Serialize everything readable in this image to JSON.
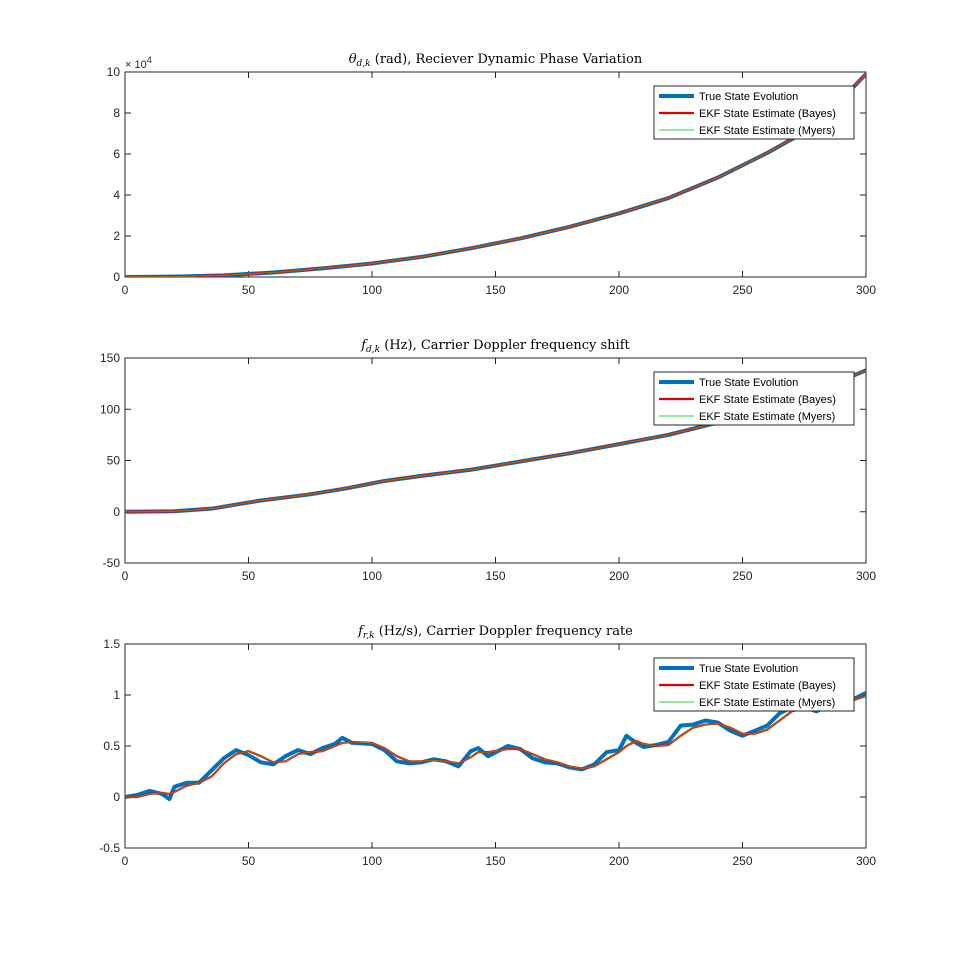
{
  "colors": {
    "true": "#0072BD",
    "bayes": "#E00000",
    "myers": "#2FD02F",
    "axis": "#262626",
    "myers_overlay": "#A06020"
  },
  "legend_labels": [
    "True State Evolution",
    "EKF State Estimate (Bayes)",
    "EKF State Estimate (Myers)"
  ],
  "chart_data": [
    {
      "type": "line",
      "title_sym": "θ",
      "title_sub": "d,k",
      "title_rest": " (rad), Reciever Dynamic Phase Variation",
      "xlim": [
        0,
        300
      ],
      "ylim": [
        0,
        10
      ],
      "xticks": [
        0,
        50,
        100,
        150,
        200,
        250,
        300
      ],
      "yticks": [
        0,
        2,
        4,
        6,
        8,
        10
      ],
      "exponent_label": "× 10",
      "exponent_power": "4",
      "legend": "top-right",
      "x": [
        0,
        20,
        40,
        60,
        80,
        100,
        120,
        140,
        160,
        180,
        200,
        220,
        240,
        260,
        280,
        300
      ],
      "series": [
        {
          "name": "True State Evolution",
          "values": [
            0,
            0.02,
            0.08,
            0.22,
            0.42,
            0.66,
            0.98,
            1.4,
            1.88,
            2.45,
            3.1,
            3.85,
            4.85,
            6.05,
            7.4,
            9.9
          ]
        },
        {
          "name": "EKF State Estimate (Bayes)",
          "values": [
            0,
            0.02,
            0.08,
            0.22,
            0.42,
            0.66,
            0.98,
            1.4,
            1.88,
            2.45,
            3.1,
            3.85,
            4.85,
            6.05,
            7.4,
            9.9
          ]
        },
        {
          "name": "EKF State Estimate (Myers)",
          "values": [
            0,
            0.02,
            0.08,
            0.22,
            0.42,
            0.66,
            0.98,
            1.4,
            1.88,
            2.45,
            3.1,
            3.85,
            4.85,
            6.05,
            7.4,
            9.9
          ]
        }
      ]
    },
    {
      "type": "line",
      "title_sym": "f",
      "title_sub": "d,k",
      "title_rest": " (Hz), Carrier Doppler frequency shift",
      "xlim": [
        0,
        300
      ],
      "ylim": [
        -50,
        150
      ],
      "xticks": [
        0,
        50,
        100,
        150,
        200,
        250,
        300
      ],
      "yticks": [
        -50,
        0,
        50,
        100,
        150
      ],
      "legend": "top-right",
      "x": [
        0,
        20,
        35,
        45,
        55,
        75,
        90,
        105,
        120,
        140,
        160,
        180,
        200,
        220,
        240,
        260,
        280,
        300
      ],
      "series": [
        {
          "name": "True State Evolution",
          "values": [
            0,
            0.5,
            3,
            7,
            11,
            17,
            23,
            30,
            35,
            41,
            49,
            57,
            66,
            75,
            87,
            100,
            118,
            138
          ]
        },
        {
          "name": "EKF State Estimate (Bayes)",
          "values": [
            0,
            0.5,
            3,
            7,
            11,
            17,
            23,
            30,
            35,
            41,
            49,
            57,
            66,
            75,
            87,
            100,
            118,
            138
          ]
        },
        {
          "name": "EKF State Estimate (Myers)",
          "values": [
            0,
            0.5,
            3,
            7,
            11,
            17,
            23,
            30,
            35,
            41,
            49,
            57,
            66,
            75,
            87,
            100,
            118,
            138
          ]
        }
      ]
    },
    {
      "type": "line",
      "title_sym": "f",
      "title_sub": "r,k",
      "title_rest": " (Hz/s), Carrier Doppler frequency rate",
      "xlim": [
        0,
        300
      ],
      "ylim": [
        -0.5,
        1.5
      ],
      "xticks": [
        0,
        50,
        100,
        150,
        200,
        250,
        300
      ],
      "yticks": [
        -0.5,
        0,
        0.5,
        1,
        1.5
      ],
      "legend": "top-right",
      "x": [
        0,
        5,
        10,
        15,
        18,
        20,
        25,
        30,
        35,
        40,
        45,
        50,
        55,
        60,
        65,
        70,
        75,
        80,
        85,
        88,
        92,
        100,
        105,
        110,
        115,
        120,
        125,
        130,
        135,
        140,
        143,
        147,
        155,
        160,
        165,
        170,
        175,
        180,
        185,
        190,
        195,
        200,
        203,
        207,
        210,
        215,
        220,
        225,
        230,
        235,
        240,
        245,
        250,
        255,
        260,
        265,
        270,
        275,
        280,
        285,
        290,
        295,
        300
      ],
      "series": [
        {
          "name": "True State Evolution",
          "values": [
            0,
            0.02,
            0.06,
            0.03,
            -0.02,
            0.1,
            0.14,
            0.14,
            0.26,
            0.38,
            0.46,
            0.41,
            0.34,
            0.32,
            0.4,
            0.46,
            0.42,
            0.48,
            0.52,
            0.58,
            0.53,
            0.52,
            0.46,
            0.35,
            0.33,
            0.34,
            0.37,
            0.35,
            0.3,
            0.45,
            0.48,
            0.4,
            0.5,
            0.47,
            0.38,
            0.34,
            0.33,
            0.29,
            0.27,
            0.32,
            0.44,
            0.46,
            0.6,
            0.53,
            0.49,
            0.51,
            0.54,
            0.7,
            0.71,
            0.75,
            0.73,
            0.65,
            0.6,
            0.65,
            0.7,
            0.82,
            0.88,
            0.88,
            0.84,
            0.9,
            0.98,
            0.96,
            1.02
          ]
        },
        {
          "name": "EKF State Estimate (Bayes)",
          "values": [
            0,
            0.0,
            0.03,
            0.04,
            0.03,
            0.05,
            0.11,
            0.14,
            0.2,
            0.33,
            0.42,
            0.45,
            0.4,
            0.34,
            0.35,
            0.42,
            0.44,
            0.45,
            0.5,
            0.53,
            0.54,
            0.53,
            0.48,
            0.4,
            0.35,
            0.35,
            0.36,
            0.35,
            0.33,
            0.39,
            0.44,
            0.44,
            0.47,
            0.47,
            0.42,
            0.37,
            0.34,
            0.3,
            0.28,
            0.3,
            0.37,
            0.44,
            0.5,
            0.55,
            0.52,
            0.5,
            0.51,
            0.6,
            0.68,
            0.71,
            0.72,
            0.68,
            0.62,
            0.62,
            0.66,
            0.75,
            0.84,
            0.87,
            0.86,
            0.88,
            0.93,
            0.95,
            0.99
          ]
        },
        {
          "name": "EKF State Estimate (Myers)",
          "values": [
            0,
            0.0,
            0.03,
            0.04,
            0.03,
            0.05,
            0.11,
            0.14,
            0.2,
            0.33,
            0.42,
            0.45,
            0.4,
            0.34,
            0.35,
            0.42,
            0.44,
            0.45,
            0.5,
            0.53,
            0.54,
            0.53,
            0.48,
            0.4,
            0.35,
            0.35,
            0.36,
            0.35,
            0.33,
            0.39,
            0.44,
            0.44,
            0.47,
            0.47,
            0.42,
            0.37,
            0.34,
            0.3,
            0.28,
            0.3,
            0.37,
            0.44,
            0.5,
            0.55,
            0.52,
            0.5,
            0.51,
            0.6,
            0.68,
            0.71,
            0.72,
            0.68,
            0.62,
            0.62,
            0.66,
            0.75,
            0.84,
            0.87,
            0.86,
            0.88,
            0.93,
            0.95,
            0.99
          ]
        }
      ]
    }
  ]
}
